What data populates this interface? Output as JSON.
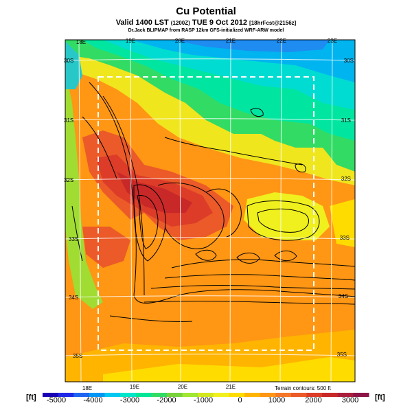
{
  "header": {
    "title": "Cu Potential",
    "subtitle_main": "Valid 1400 LST",
    "subtitle_small1": "(1200Z)",
    "subtitle_date": "TUE 9 Oct 2012",
    "subtitle_small2": "[18hrFcst@2156z]",
    "credit": "Dr.Jack BLIPMAP from RASP 12km GFS-initialized WRF-ARW model"
  },
  "map": {
    "lon_labels_top": [
      "18E",
      "19E",
      "20E",
      "21E",
      "22E",
      "23E"
    ],
    "lon_labels_bottom": [
      "18E",
      "19E",
      "20E",
      "21E"
    ],
    "lat_labels_left": [
      "30S",
      "31S",
      "32S",
      "33S",
      "34S",
      "35S"
    ],
    "lat_labels_right": [
      "30S",
      "31S",
      "32S",
      "33S",
      "34S",
      "35S"
    ],
    "terrain_note": "Terrain contours: 500 ft"
  },
  "colorbar": {
    "unit_left": "[ft]",
    "unit_right": "[ft]",
    "tick_labels": [
      "-5000",
      "-4000",
      "-3000",
      "-2000",
      "-1000",
      "0",
      "1000",
      "2000",
      "3000"
    ],
    "colors": [
      "#1a00b4",
      "#1e28e6",
      "#1e64f0",
      "#0096f5",
      "#00c8f0",
      "#00e6c8",
      "#00e696",
      "#32dc64",
      "#78d23c",
      "#a0e632",
      "#d2e61e",
      "#f0f01e",
      "#ffdc00",
      "#ffb400",
      "#ff9614",
      "#f57828",
      "#eb5a28",
      "#dc3c28",
      "#c82828",
      "#aa1e3c",
      "#8c1446"
    ]
  }
}
